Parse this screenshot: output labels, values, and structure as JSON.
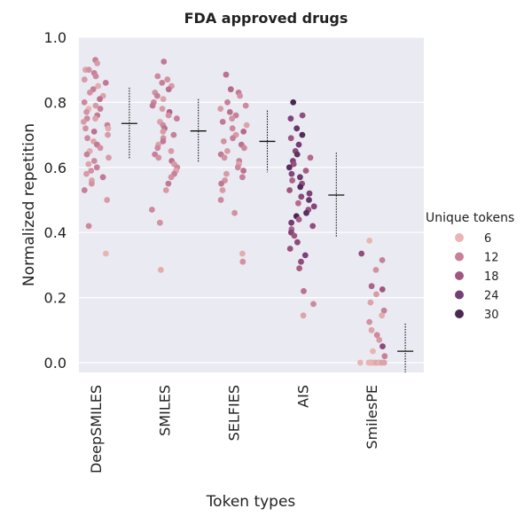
{
  "chart_data": {
    "type": "scatter",
    "subtype": "strip",
    "title": "FDA approved drugs",
    "xlabel": "Token types",
    "ylabel": "Normalized repetition",
    "categories": [
      "DeepSMILES",
      "SMILES",
      "SELFIES",
      "AIS",
      "SmilesPE"
    ],
    "ylim": [
      -0.03,
      1.0
    ],
    "yticks": [
      0.0,
      0.2,
      0.4,
      0.6,
      0.8,
      1.0
    ],
    "yticklabels": [
      "0.0",
      "0.2",
      "0.4",
      "0.6",
      "0.8",
      "1.0"
    ],
    "grid": true,
    "legend": {
      "title": "Unique tokens",
      "position": "right",
      "entries": [
        {
          "label": "6",
          "value": 6
        },
        {
          "label": "12",
          "value": 12
        },
        {
          "label": "18",
          "value": 18
        },
        {
          "label": "24",
          "value": 24
        },
        {
          "label": "30",
          "value": 30
        }
      ]
    },
    "colors": {
      "background": "#eaeaf2",
      "gridline": "#ffffff",
      "scale": [
        "#e8b5b2",
        "#c7809a",
        "#a0567f",
        "#733e77",
        "#4a2850"
      ]
    },
    "summary": [
      {
        "category": "DeepSMILES",
        "mean": 0.735,
        "low": 0.625,
        "high": 0.845
      },
      {
        "category": "SMILES",
        "mean": 0.712,
        "low": 0.615,
        "high": 0.81
      },
      {
        "category": "SELFIES",
        "mean": 0.68,
        "low": 0.585,
        "high": 0.775
      },
      {
        "category": "AIS",
        "mean": 0.515,
        "low": 0.385,
        "high": 0.645
      },
      {
        "category": "SmilesPE",
        "mean": 0.035,
        "low": -0.03,
        "high": 0.12
      }
    ],
    "series": [
      {
        "category": "DeepSMILES",
        "points": [
          {
            "y": 0.93,
            "t": 12
          },
          {
            "y": 0.92,
            "t": 9
          },
          {
            "y": 0.9,
            "t": 8
          },
          {
            "y": 0.9,
            "t": 10
          },
          {
            "y": 0.89,
            "t": 12
          },
          {
            "y": 0.88,
            "t": 11
          },
          {
            "y": 0.87,
            "t": 9
          },
          {
            "y": 0.86,
            "t": 13
          },
          {
            "y": 0.85,
            "t": 7
          },
          {
            "y": 0.84,
            "t": 12
          },
          {
            "y": 0.83,
            "t": 10
          },
          {
            "y": 0.82,
            "t": 8
          },
          {
            "y": 0.81,
            "t": 14
          },
          {
            "y": 0.8,
            "t": 11
          },
          {
            "y": 0.79,
            "t": 9
          },
          {
            "y": 0.78,
            "t": 6
          },
          {
            "y": 0.78,
            "t": 12
          },
          {
            "y": 0.77,
            "t": 10
          },
          {
            "y": 0.76,
            "t": 13
          },
          {
            "y": 0.75,
            "t": 8
          },
          {
            "y": 0.75,
            "t": 11
          },
          {
            "y": 0.74,
            "t": 9
          },
          {
            "y": 0.73,
            "t": 12
          },
          {
            "y": 0.72,
            "t": 7
          },
          {
            "y": 0.72,
            "t": 10
          },
          {
            "y": 0.71,
            "t": 14
          },
          {
            "y": 0.7,
            "t": 9
          },
          {
            "y": 0.69,
            "t": 11
          },
          {
            "y": 0.68,
            "t": 8
          },
          {
            "y": 0.67,
            "t": 13
          },
          {
            "y": 0.66,
            "t": 10
          },
          {
            "y": 0.65,
            "t": 7
          },
          {
            "y": 0.64,
            "t": 12
          },
          {
            "y": 0.63,
            "t": 9
          },
          {
            "y": 0.62,
            "t": 11
          },
          {
            "y": 0.61,
            "t": 8
          },
          {
            "y": 0.6,
            "t": 12
          },
          {
            "y": 0.59,
            "t": 10
          },
          {
            "y": 0.58,
            "t": 9
          },
          {
            "y": 0.57,
            "t": 13
          },
          {
            "y": 0.56,
            "t": 8
          },
          {
            "y": 0.55,
            "t": 10
          },
          {
            "y": 0.53,
            "t": 12
          },
          {
            "y": 0.5,
            "t": 9
          },
          {
            "y": 0.42,
            "t": 11
          },
          {
            "y": 0.335,
            "t": 6
          }
        ]
      },
      {
        "category": "SMILES",
        "points": [
          {
            "y": 0.925,
            "t": 13
          },
          {
            "y": 0.88,
            "t": 11
          },
          {
            "y": 0.87,
            "t": 10
          },
          {
            "y": 0.86,
            "t": 12
          },
          {
            "y": 0.85,
            "t": 9
          },
          {
            "y": 0.84,
            "t": 14
          },
          {
            "y": 0.83,
            "t": 10
          },
          {
            "y": 0.82,
            "t": 12
          },
          {
            "y": 0.81,
            "t": 8
          },
          {
            "y": 0.8,
            "t": 11
          },
          {
            "y": 0.79,
            "t": 13
          },
          {
            "y": 0.78,
            "t": 9
          },
          {
            "y": 0.77,
            "t": 16
          },
          {
            "y": 0.76,
            "t": 10
          },
          {
            "y": 0.75,
            "t": 12
          },
          {
            "y": 0.74,
            "t": 8
          },
          {
            "y": 0.73,
            "t": 11
          },
          {
            "y": 0.72,
            "t": 14
          },
          {
            "y": 0.71,
            "t": 9
          },
          {
            "y": 0.7,
            "t": 12
          },
          {
            "y": 0.69,
            "t": 10
          },
          {
            "y": 0.68,
            "t": 13
          },
          {
            "y": 0.67,
            "t": 8
          },
          {
            "y": 0.66,
            "t": 11
          },
          {
            "y": 0.65,
            "t": 9
          },
          {
            "y": 0.64,
            "t": 12
          },
          {
            "y": 0.63,
            "t": 10
          },
          {
            "y": 0.62,
            "t": 14
          },
          {
            "y": 0.61,
            "t": 9
          },
          {
            "y": 0.6,
            "t": 11
          },
          {
            "y": 0.59,
            "t": 8
          },
          {
            "y": 0.58,
            "t": 12
          },
          {
            "y": 0.57,
            "t": 10
          },
          {
            "y": 0.55,
            "t": 13
          },
          {
            "y": 0.53,
            "t": 9
          },
          {
            "y": 0.47,
            "t": 11
          },
          {
            "y": 0.43,
            "t": 10
          },
          {
            "y": 0.285,
            "t": 7
          }
        ]
      },
      {
        "category": "SELFIES",
        "points": [
          {
            "y": 0.885,
            "t": 14
          },
          {
            "y": 0.84,
            "t": 15
          },
          {
            "y": 0.83,
            "t": 13
          },
          {
            "y": 0.82,
            "t": 10
          },
          {
            "y": 0.8,
            "t": 12
          },
          {
            "y": 0.79,
            "t": 11
          },
          {
            "y": 0.78,
            "t": 9
          },
          {
            "y": 0.77,
            "t": 14
          },
          {
            "y": 0.76,
            "t": 12
          },
          {
            "y": 0.75,
            "t": 10
          },
          {
            "y": 0.74,
            "t": 13
          },
          {
            "y": 0.73,
            "t": 8
          },
          {
            "y": 0.72,
            "t": 11
          },
          {
            "y": 0.71,
            "t": 15
          },
          {
            "y": 0.7,
            "t": 9
          },
          {
            "y": 0.69,
            "t": 12
          },
          {
            "y": 0.68,
            "t": 10
          },
          {
            "y": 0.67,
            "t": 14
          },
          {
            "y": 0.66,
            "t": 11
          },
          {
            "y": 0.65,
            "t": 9
          },
          {
            "y": 0.64,
            "t": 13
          },
          {
            "y": 0.63,
            "t": 10
          },
          {
            "y": 0.62,
            "t": 12
          },
          {
            "y": 0.61,
            "t": 8
          },
          {
            "y": 0.6,
            "t": 11
          },
          {
            "y": 0.59,
            "t": 14
          },
          {
            "y": 0.58,
            "t": 9
          },
          {
            "y": 0.57,
            "t": 12
          },
          {
            "y": 0.56,
            "t": 10
          },
          {
            "y": 0.55,
            "t": 13
          },
          {
            "y": 0.53,
            "t": 9
          },
          {
            "y": 0.5,
            "t": 11
          },
          {
            "y": 0.46,
            "t": 10
          },
          {
            "y": 0.335,
            "t": 7
          },
          {
            "y": 0.31,
            "t": 10
          }
        ]
      },
      {
        "category": "AIS",
        "points": [
          {
            "y": 0.8,
            "t": 30
          },
          {
            "y": 0.76,
            "t": 20
          },
          {
            "y": 0.75,
            "t": 22
          },
          {
            "y": 0.72,
            "t": 26
          },
          {
            "y": 0.7,
            "t": 29
          },
          {
            "y": 0.69,
            "t": 18
          },
          {
            "y": 0.67,
            "t": 24
          },
          {
            "y": 0.65,
            "t": 21
          },
          {
            "y": 0.64,
            "t": 27
          },
          {
            "y": 0.63,
            "t": 15
          },
          {
            "y": 0.62,
            "t": 23
          },
          {
            "y": 0.61,
            "t": 19
          },
          {
            "y": 0.6,
            "t": 28
          },
          {
            "y": 0.59,
            "t": 17
          },
          {
            "y": 0.58,
            "t": 22
          },
          {
            "y": 0.57,
            "t": 25
          },
          {
            "y": 0.56,
            "t": 16
          },
          {
            "y": 0.55,
            "t": 20
          },
          {
            "y": 0.54,
            "t": 29
          },
          {
            "y": 0.53,
            "t": 18
          },
          {
            "y": 0.52,
            "t": 23
          },
          {
            "y": 0.51,
            "t": 21
          },
          {
            "y": 0.5,
            "t": 26
          },
          {
            "y": 0.49,
            "t": 15
          },
          {
            "y": 0.48,
            "t": 22
          },
          {
            "y": 0.47,
            "t": 19
          },
          {
            "y": 0.46,
            "t": 28
          },
          {
            "y": 0.45,
            "t": 30
          },
          {
            "y": 0.44,
            "t": 17
          },
          {
            "y": 0.43,
            "t": 24
          },
          {
            "y": 0.42,
            "t": 20
          },
          {
            "y": 0.41,
            "t": 16
          },
          {
            "y": 0.4,
            "t": 22
          },
          {
            "y": 0.39,
            "t": 18
          },
          {
            "y": 0.37,
            "t": 21
          },
          {
            "y": 0.35,
            "t": 19
          },
          {
            "y": 0.33,
            "t": 23
          },
          {
            "y": 0.31,
            "t": 20
          },
          {
            "y": 0.29,
            "t": 17
          },
          {
            "y": 0.22,
            "t": 14
          },
          {
            "y": 0.18,
            "t": 11
          },
          {
            "y": 0.145,
            "t": 8
          }
        ]
      },
      {
        "category": "SmilesPE",
        "points": [
          {
            "y": 0.375,
            "t": 6
          },
          {
            "y": 0.335,
            "t": 20
          },
          {
            "y": 0.315,
            "t": 12
          },
          {
            "y": 0.285,
            "t": 10
          },
          {
            "y": 0.235,
            "t": 16
          },
          {
            "y": 0.225,
            "t": 18
          },
          {
            "y": 0.21,
            "t": 9
          },
          {
            "y": 0.185,
            "t": 8
          },
          {
            "y": 0.16,
            "t": 12
          },
          {
            "y": 0.145,
            "t": 7
          },
          {
            "y": 0.125,
            "t": 10
          },
          {
            "y": 0.1,
            "t": 8
          },
          {
            "y": 0.085,
            "t": 11
          },
          {
            "y": 0.07,
            "t": 9
          },
          {
            "y": 0.05,
            "t": 21
          },
          {
            "y": 0.035,
            "t": 6
          },
          {
            "y": 0.02,
            "t": 12
          },
          {
            "y": 0.0,
            "t": 6
          },
          {
            "y": 0.0,
            "t": 6
          },
          {
            "y": 0.0,
            "t": 7
          },
          {
            "y": 0.0,
            "t": 6
          },
          {
            "y": 0.0,
            "t": 8
          },
          {
            "y": 0.0,
            "t": 6
          },
          {
            "y": 0.0,
            "t": 7
          },
          {
            "y": 0.0,
            "t": 6
          },
          {
            "y": 0.0,
            "t": 9
          },
          {
            "y": 0.0,
            "t": 6
          },
          {
            "y": 0.0,
            "t": 7
          },
          {
            "y": 0.0,
            "t": 6
          },
          {
            "y": 0.0,
            "t": 8
          }
        ]
      }
    ]
  }
}
